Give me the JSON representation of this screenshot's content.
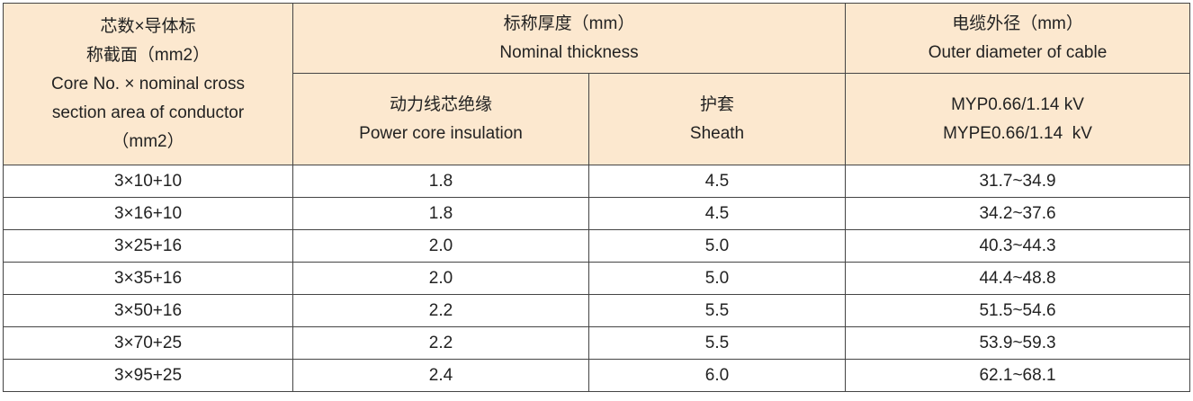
{
  "table": {
    "header": {
      "size": [
        "芯数×导体标",
        "称截面（mm2）",
        "Core No. × nominal cross",
        "section area of conductor",
        "（mm2）"
      ],
      "thickness": [
        "标称厚度（mm）",
        "Nominal thickness"
      ],
      "insulation": [
        "动力线芯绝缘",
        "Power core insulation"
      ],
      "sheath": [
        "护套",
        "Sheath"
      ],
      "diameter": [
        "电缆外径（mm）",
        "Outer diameter of cable"
      ],
      "voltage": [
        "MYP0.66/1.14 kV",
        "MYPE0.66/1.14  kV"
      ]
    },
    "rows": [
      [
        "3×10+10",
        "1.8",
        "4.5",
        "31.7~34.9"
      ],
      [
        "3×16+10",
        "1.8",
        "4.5",
        "34.2~37.6"
      ],
      [
        "3×25+16",
        "2.0",
        "5.0",
        "40.3~44.3"
      ],
      [
        "3×35+16",
        "2.0",
        "5.0",
        "44.4~48.8"
      ],
      [
        "3×50+16",
        "2.2",
        "5.5",
        "51.5~54.6"
      ],
      [
        "3×70+25",
        "2.2",
        "5.5",
        "53.9~59.3"
      ],
      [
        "3×95+25",
        "2.4",
        "6.0",
        "62.1~68.1"
      ]
    ]
  }
}
